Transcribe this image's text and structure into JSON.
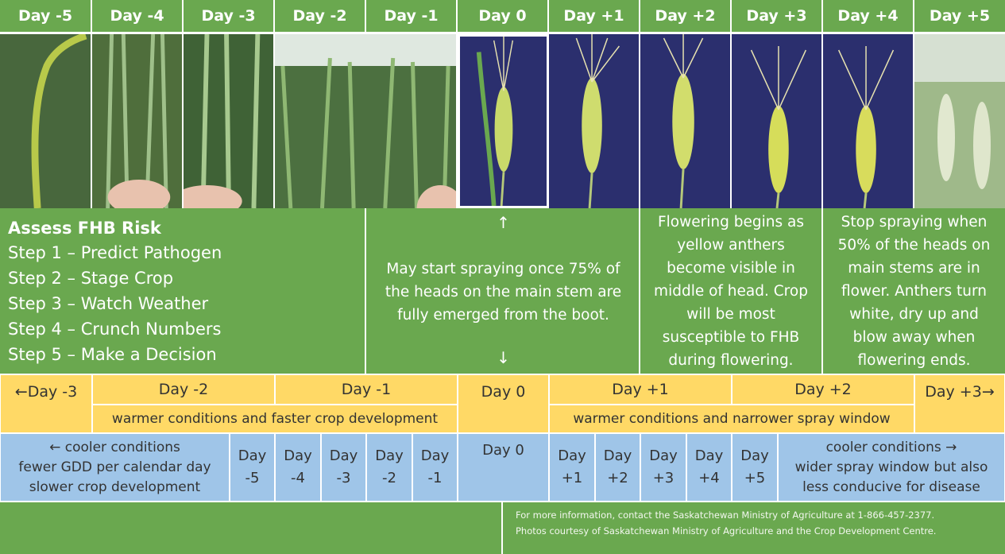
{
  "days": [
    "Day -5",
    "Day -4",
    "Day -3",
    "Day -2",
    "Day -1",
    "Day 0",
    "Day +1",
    "Day +2",
    "Day +3",
    "Day +4",
    "Day +5"
  ],
  "assess": {
    "title": "Assess FHB Risk",
    "steps": [
      "Step 1 – Predict Pathogen",
      "Step 2 – Stage Crop",
      "Step 3 – Watch Weather",
      "Step 4 – Crunch Numbers",
      "Step 5 – Make a Decision"
    ]
  },
  "notes": {
    "spray_start": "May start spraying once 75% of the heads on the main stem are fully emerged from the boot.",
    "flowering": "Flowering begins as yellow anthers become visible in middle of head. Crop will be most susceptible to FHB during flowering.",
    "stop": "Stop spraying when 50% of the heads on main stems are in flower. Anthers turn white, dry up and blow away when flowering ends.",
    "arrow_up": "↑",
    "arrow_down": "↓"
  },
  "warm_row": {
    "labels": [
      "←Day -3",
      "Day -2",
      "Day -1",
      "Day 0",
      "Day +1",
      "Day +2",
      "Day +3→"
    ],
    "left_note": "warmer conditions and faster crop development",
    "right_note": "warmer conditions and narrower spray window"
  },
  "cool_row": {
    "left_note": [
      "← cooler conditions",
      "fewer GDD per calendar day",
      "slower crop development"
    ],
    "left_days": [
      [
        "Day",
        "-5"
      ],
      [
        "Day",
        "-4"
      ],
      [
        "Day",
        "-3"
      ],
      [
        "Day",
        "-2"
      ],
      [
        "Day",
        "-1"
      ]
    ],
    "center": "Day 0",
    "right_days": [
      [
        "Day",
        "+1"
      ],
      [
        "Day",
        "+2"
      ],
      [
        "Day",
        "+3"
      ],
      [
        "Day",
        "+4"
      ],
      [
        "Day",
        "+5"
      ]
    ],
    "right_note": [
      "cooler conditions →",
      "wider spray window but also",
      "less conducive for disease"
    ]
  },
  "footer": {
    "line1": "For more information, contact the Saskatchewan Ministry of Agriculture at 1-866-457-2377.",
    "line2": "Photos courtesy of Saskatchewan Ministry of Agriculture and the Crop Development Centre."
  },
  "colors": {
    "green": "#6aa84f",
    "yellow": "#ffd966",
    "blue": "#9fc5e8",
    "navy": "#2b2f6e"
  }
}
